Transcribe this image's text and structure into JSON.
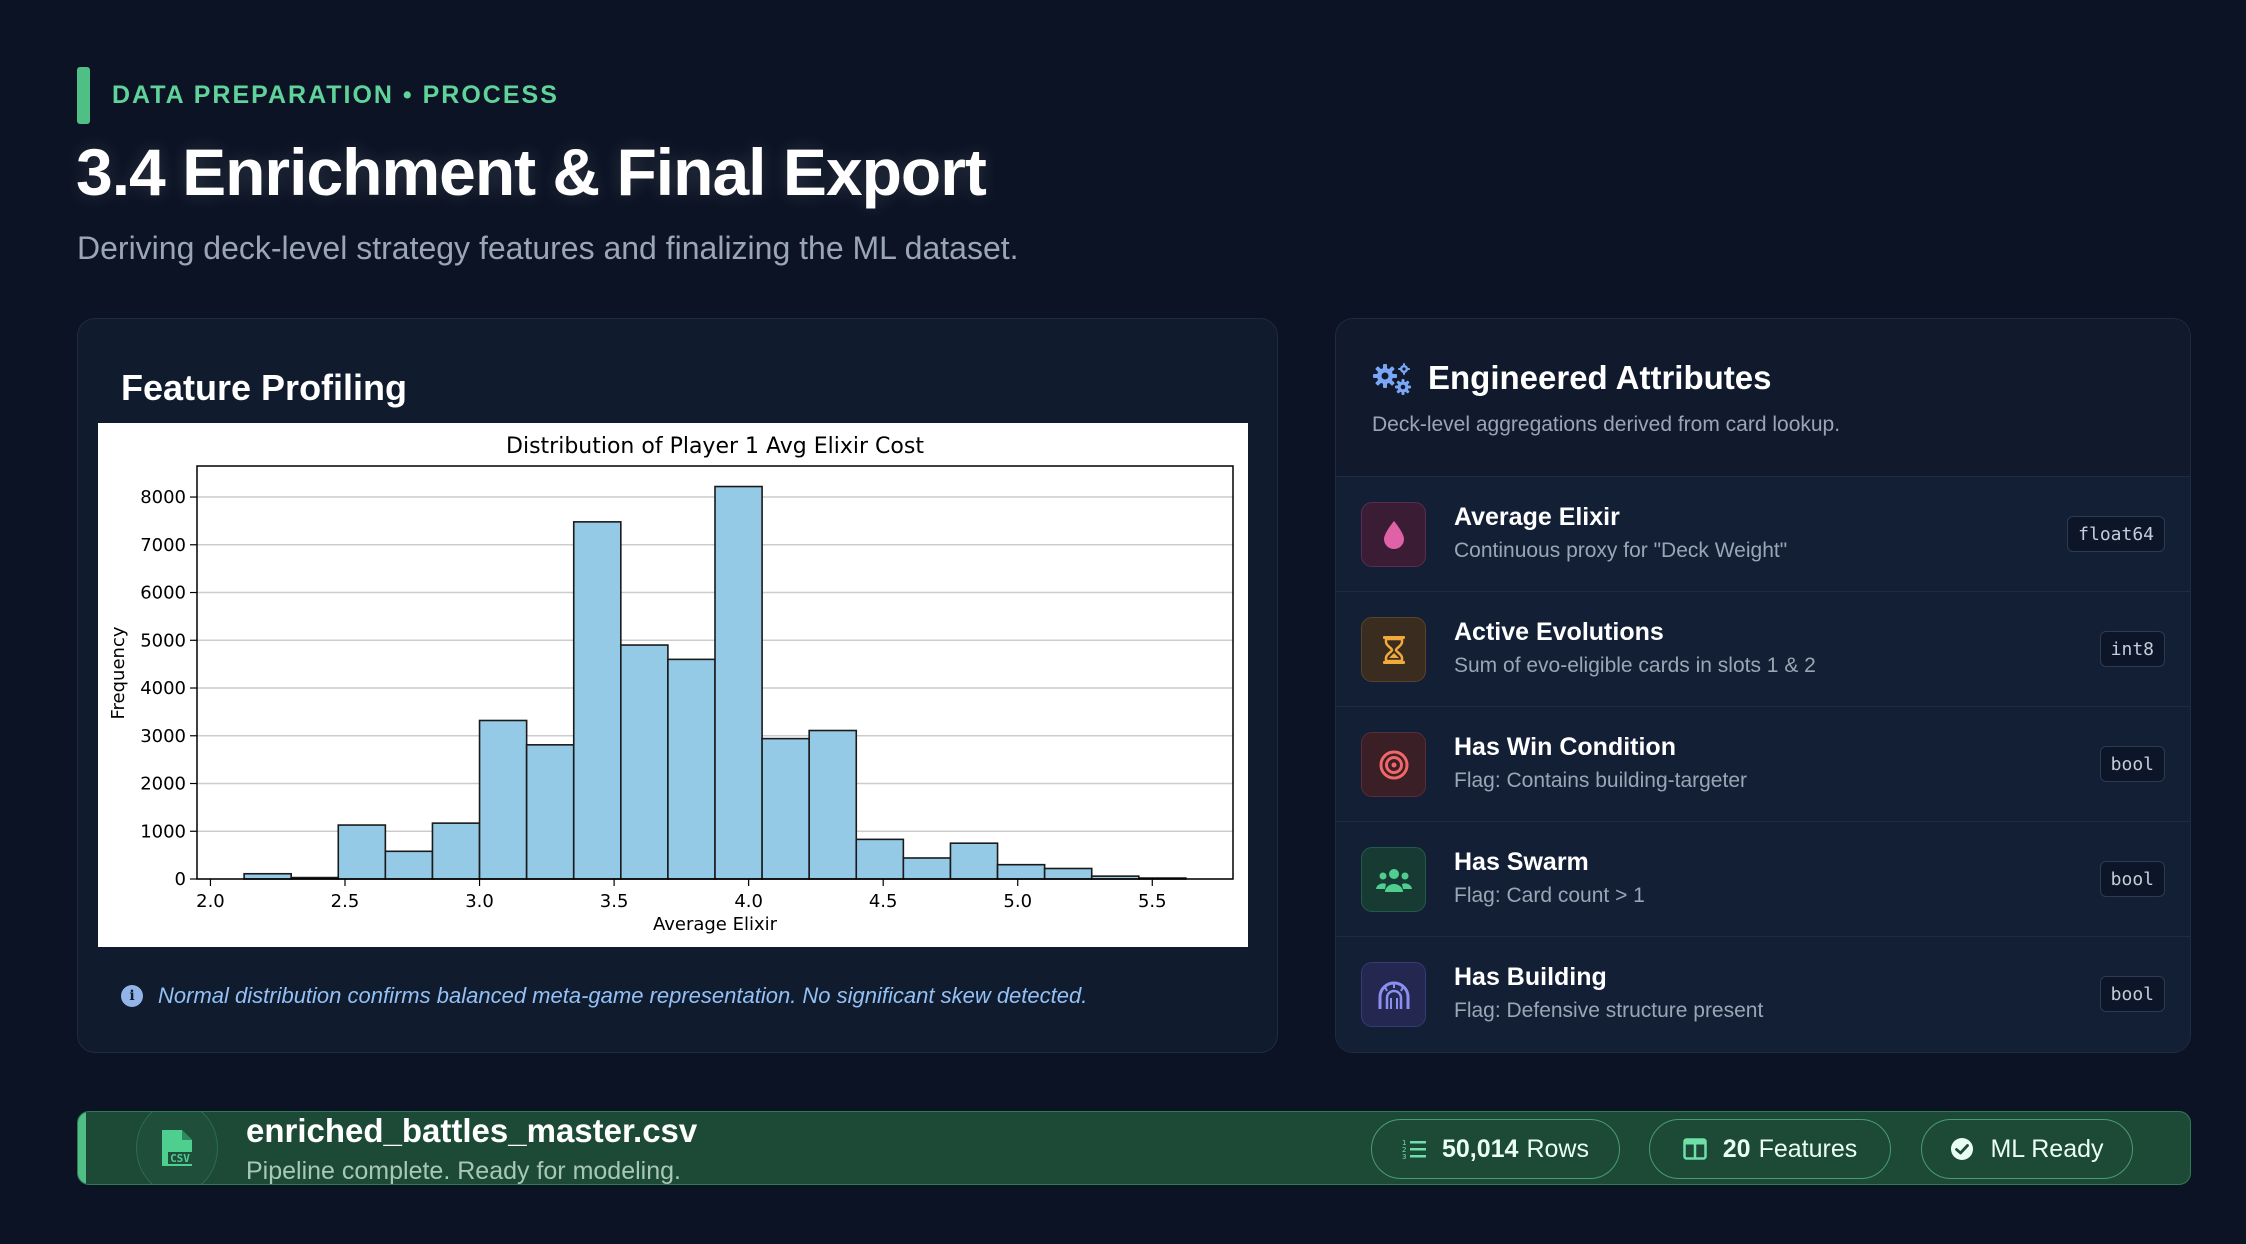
{
  "header": {
    "eyebrow": "DATA PREPARATION • PROCESS",
    "title": "3.4 Enrichment & Final Export",
    "subtitle": "Deriving deck-level strategy features and finalizing the ML dataset."
  },
  "profiling": {
    "title": "Feature Profiling",
    "note": "Normal distribution confirms balanced meta-game representation. No significant skew detected.",
    "note_icon": "info-icon"
  },
  "chart_data": {
    "type": "bar",
    "title": "Distribution of Player 1 Avg Elixir Cost",
    "xlabel": "Average Elixir",
    "ylabel": "Frequency",
    "bin_edges": [
      2.125,
      2.3,
      2.475,
      2.65,
      2.825,
      3.0,
      3.175,
      3.35,
      3.525,
      3.7,
      3.875,
      4.05,
      4.225,
      4.4,
      4.575,
      4.75,
      4.925,
      5.1,
      5.275,
      5.45,
      5.625
    ],
    "values": [
      110,
      30,
      1130,
      580,
      1170,
      3320,
      2810,
      7480,
      4900,
      4600,
      8220,
      2940,
      3110,
      830,
      440,
      750,
      300,
      220,
      60,
      20
    ],
    "xlim": [
      1.95,
      5.8
    ],
    "ylim": [
      0,
      8650
    ],
    "xticks": [
      "2.0",
      "2.5",
      "3.0",
      "3.5",
      "4.0",
      "4.5",
      "5.0",
      "5.5"
    ],
    "yticks": [
      "0",
      "1000",
      "2000",
      "3000",
      "4000",
      "5000",
      "6000",
      "7000",
      "8000"
    ],
    "grid": true,
    "bar_color": "#95cae7"
  },
  "attributes": {
    "title": "Engineered Attributes",
    "subtitle": "Deck-level aggregations derived from card lookup.",
    "header_icon": "gears-icon",
    "items": [
      {
        "name": "Average Elixir",
        "desc": "Continuous proxy for \"Deck Weight\"",
        "type": "float64",
        "icon": "droplet-icon",
        "color": "#e062a6",
        "bg": "#3a1d35"
      },
      {
        "name": "Active Evolutions",
        "desc": "Sum of evo-eligible cards in slots 1 & 2",
        "type": "int8",
        "icon": "hourglass-icon",
        "color": "#f2a93b",
        "bg": "#3a2c1f"
      },
      {
        "name": "Has Win Condition",
        "desc": "Flag: Contains building-targeter",
        "type": "bool",
        "icon": "target-icon",
        "color": "#f06767",
        "bg": "#3a1f27"
      },
      {
        "name": "Has Swarm",
        "desc": "Flag: Card count > 1",
        "type": "bool",
        "icon": "users-icon",
        "color": "#4fcf8f",
        "bg": "#173a33"
      },
      {
        "name": "Has Building",
        "desc": "Flag: Defensive structure present",
        "type": "bool",
        "icon": "dungeon-icon",
        "color": "#8b8ff0",
        "bg": "#24274f"
      }
    ]
  },
  "footer": {
    "filename": "enriched_battles_master.csv",
    "status": "Pipeline complete. Ready for modeling.",
    "file_icon": "file-csv-icon",
    "file_icon_text": "CSV",
    "rows_value": "50,014",
    "rows_label": "Rows",
    "features_value": "20",
    "features_label": "Features",
    "ready_label": "ML Ready"
  }
}
